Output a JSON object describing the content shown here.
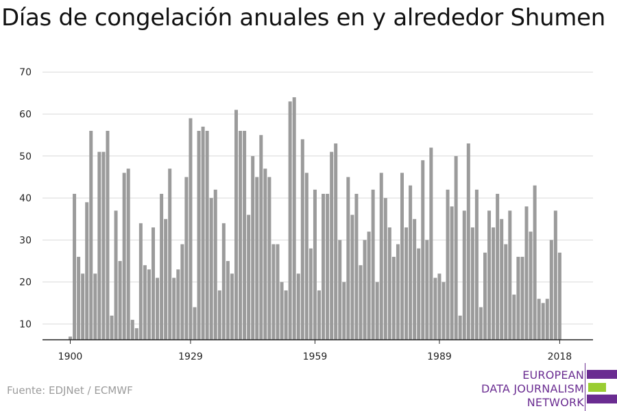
{
  "title": "Días de congelación anuales en y alrededor Shumen",
  "source": "Fuente: EDJNet / ECMWF",
  "logo": {
    "lines": [
      "EUROPEAN",
      "DATA JOURNALISM",
      "NETWORK"
    ]
  },
  "colors": {
    "bar": "#9b9b9b",
    "grid": "#d9d9d9",
    "axis": "#222222",
    "brand_purple": "#6a2c91",
    "brand_green": "#9acd32"
  },
  "chart_data": {
    "type": "bar",
    "title": "Días de congelación anuales en y alrededor Shumen",
    "xlabel": "",
    "ylabel": "",
    "ylim": [
      6,
      70
    ],
    "yticks": [
      10,
      20,
      30,
      40,
      50,
      60,
      70
    ],
    "xticks": [
      1900,
      1929,
      1959,
      1989,
      2018
    ],
    "grid": true,
    "x": [
      1900,
      1901,
      1902,
      1903,
      1904,
      1905,
      1906,
      1907,
      1908,
      1909,
      1910,
      1911,
      1912,
      1913,
      1914,
      1915,
      1916,
      1917,
      1918,
      1919,
      1920,
      1921,
      1922,
      1923,
      1924,
      1925,
      1926,
      1927,
      1928,
      1929,
      1930,
      1931,
      1932,
      1933,
      1934,
      1935,
      1936,
      1937,
      1938,
      1939,
      1940,
      1941,
      1942,
      1943,
      1944,
      1945,
      1946,
      1947,
      1948,
      1949,
      1950,
      1951,
      1952,
      1953,
      1954,
      1955,
      1956,
      1957,
      1958,
      1959,
      1960,
      1961,
      1962,
      1963,
      1964,
      1965,
      1966,
      1967,
      1968,
      1969,
      1970,
      1971,
      1972,
      1973,
      1974,
      1975,
      1976,
      1977,
      1978,
      1979,
      1980,
      1981,
      1982,
      1983,
      1984,
      1985,
      1986,
      1987,
      1988,
      1989,
      1990,
      1991,
      1992,
      1993,
      1994,
      1995,
      1996,
      1997,
      1998,
      1999,
      2000,
      2001,
      2002,
      2003,
      2004,
      2005,
      2006,
      2007,
      2008,
      2009,
      2010,
      2011,
      2012,
      2013,
      2014,
      2015,
      2016,
      2017,
      2018
    ],
    "values": [
      7,
      41,
      26,
      22,
      39,
      56,
      22,
      51,
      51,
      56,
      12,
      37,
      25,
      46,
      47,
      11,
      9,
      34,
      24,
      23,
      33,
      21,
      41,
      35,
      47,
      21,
      23,
      29,
      45,
      59,
      14,
      56,
      57,
      56,
      40,
      42,
      18,
      34,
      25,
      22,
      61,
      56,
      56,
      36,
      50,
      45,
      55,
      47,
      45,
      29,
      29,
      20,
      18,
      63,
      64,
      22,
      54,
      46,
      28,
      42,
      18,
      41,
      41,
      51,
      53,
      30,
      20,
      45,
      36,
      41,
      24,
      30,
      32,
      42,
      20,
      46,
      40,
      33,
      26,
      29,
      46,
      33,
      43,
      35,
      28,
      49,
      30,
      52,
      21,
      22,
      20,
      42,
      38,
      50,
      12,
      37,
      53,
      33,
      42,
      14,
      27,
      37,
      33,
      41,
      35,
      29,
      37,
      17,
      26,
      26,
      38,
      32,
      43,
      16,
      15,
      16,
      30,
      37,
      27
    ]
  }
}
